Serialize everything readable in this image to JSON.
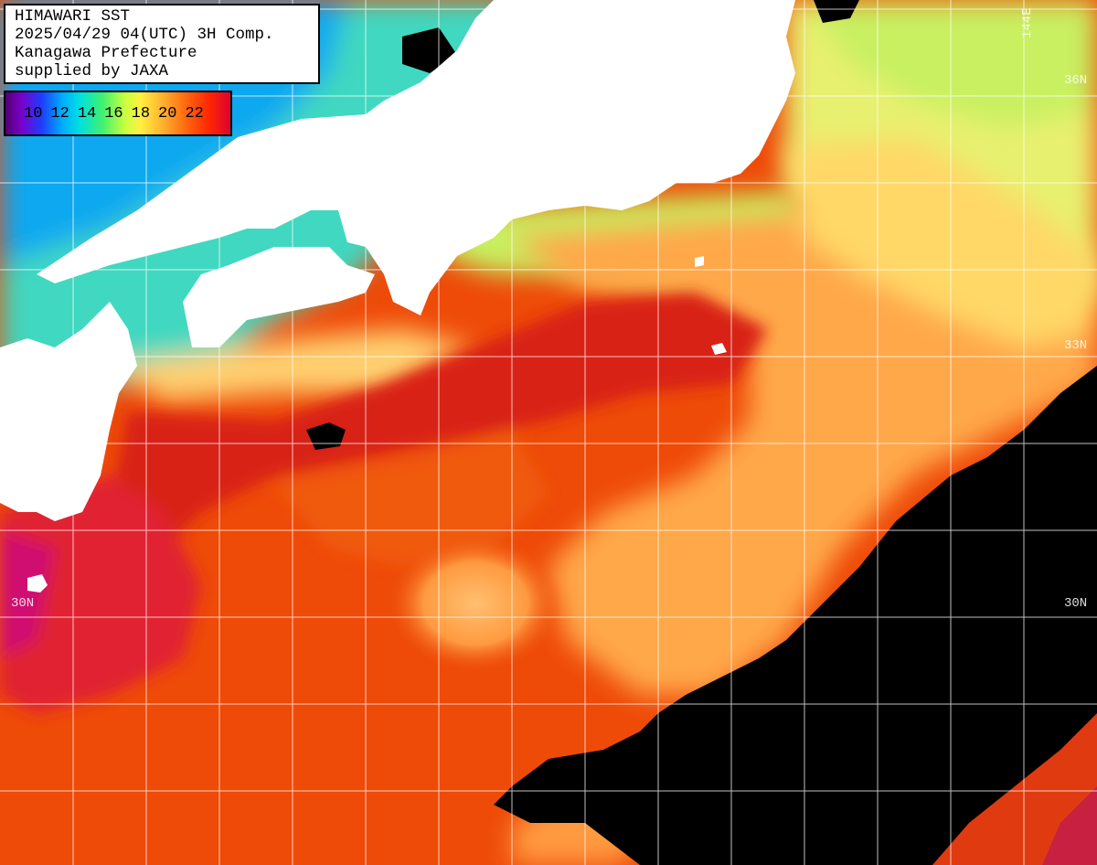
{
  "header": {
    "line1": "HIMAWARI SST",
    "line2": "2025/04/29 04(UTC) 3H Comp.",
    "line3": "Kanagawa Prefecture",
    "line4": "supplied by JAXA"
  },
  "legend": {
    "ticks": [
      "10",
      "12",
      "14",
      "16",
      "18",
      "20",
      "22"
    ],
    "min_color": "#500070",
    "max_color": "#e00030"
  },
  "grid_labels": {
    "lat_36": "36N",
    "lat_33": "33N",
    "lat_30_left": "30N",
    "lat_30_right": "30N",
    "lon_144": "144E"
  },
  "colors": {
    "land": "#ffffff",
    "no_data": "#000000",
    "warm": "#e8420a",
    "hot": "#d0201a",
    "mild": "#ffb040",
    "cool": "#a8f060",
    "cold": "#30d0c0",
    "grid": "#ffffff"
  }
}
